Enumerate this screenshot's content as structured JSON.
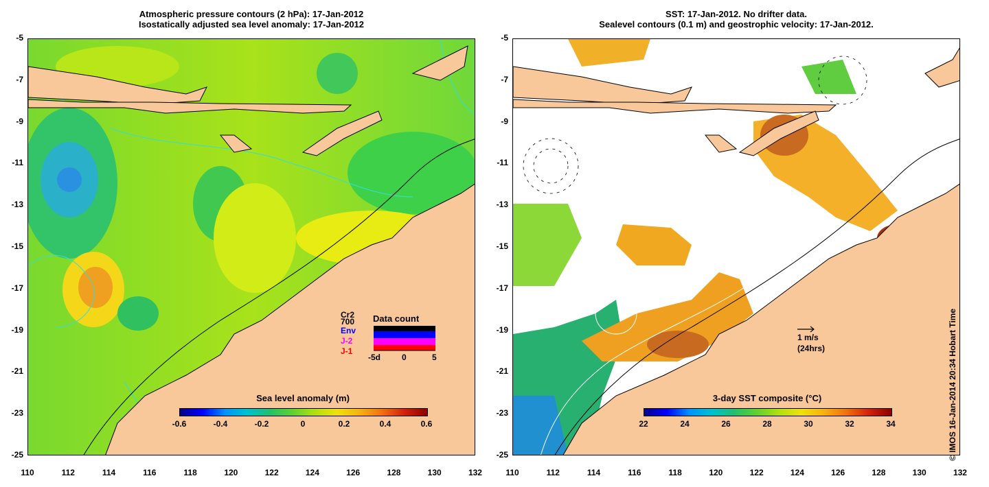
{
  "left_panel": {
    "title_line1": "Atmospheric pressure contours (2 hPa): 17-Jan-2012",
    "title_line2": "Isostatically adjusted sea level anomaly: 17-Jan-2012",
    "colorbar_label": "Sea level anomaly (m)",
    "colorbar_ticks": [
      "-0.6",
      "-0.4",
      "-0.2",
      "0",
      "0.2",
      "0.4",
      "0.6"
    ],
    "missions": [
      {
        "label": "Cr2",
        "color": "#000000"
      },
      {
        "label": "700",
        "color": "#000000"
      },
      {
        "label": "Env",
        "color": "#0000ff"
      },
      {
        "label": "J-2",
        "color": "#ff00ff"
      },
      {
        "label": "J-1",
        "color": "#ff0000"
      }
    ],
    "data_count": {
      "title": "Data count",
      "axis_labels": [
        "-5d",
        "0",
        "5"
      ]
    }
  },
  "right_panel": {
    "title_line1": "SST: 17-Jan-2012. No drifter data.",
    "title_line2": "Sealevel contours (0.1 m) and geostrophic velocity: 17-Jan-2012.",
    "colorbar_label": "3-day SST composite (°C)",
    "colorbar_ticks": [
      "22",
      "24",
      "26",
      "28",
      "30",
      "32",
      "34"
    ],
    "velocity_legend_line1": "1 m/s",
    "velocity_legend_line2": "(24hrs)"
  },
  "axes": {
    "lat_ticks": [
      "-5",
      "-7",
      "-9",
      "-11",
      "-13",
      "-15",
      "-17",
      "-19",
      "-21",
      "-23",
      "-25"
    ],
    "lon_ticks": [
      "110",
      "112",
      "114",
      "116",
      "118",
      "120",
      "122",
      "124",
      "126",
      "128",
      "130",
      "132"
    ]
  },
  "credit": "© IMOS 16-Jan-2014 20:34 Hobart Time",
  "colors": {
    "land": "#f9c89a",
    "sla_background": "#9be21a",
    "sst_background": "#ffffff",
    "contour": "#33dddd"
  }
}
